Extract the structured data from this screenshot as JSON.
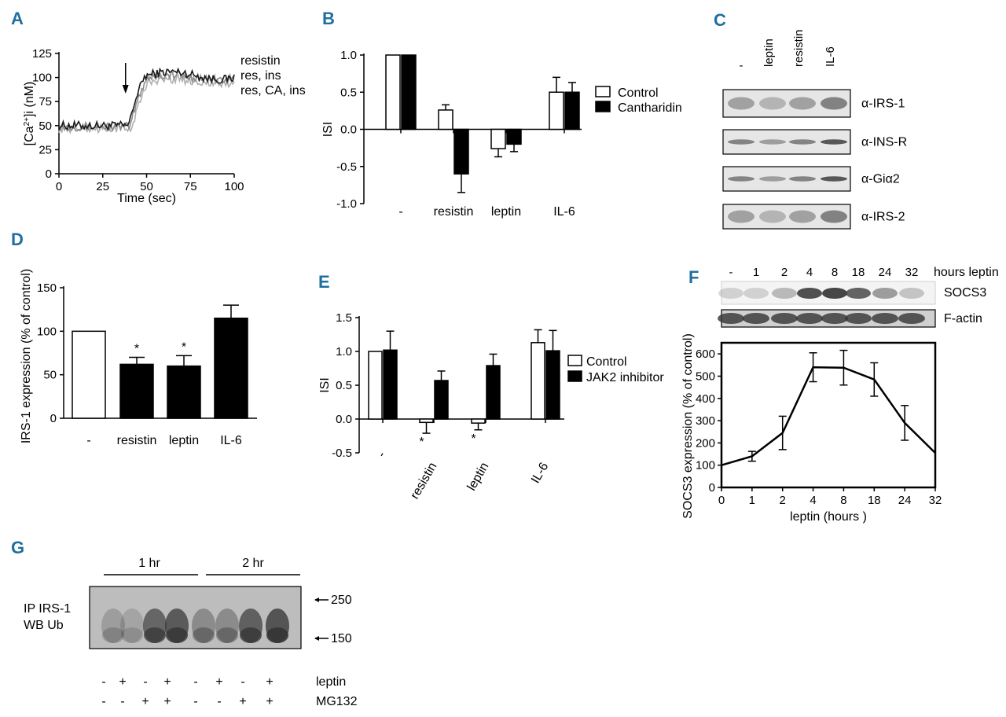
{
  "panels": {
    "A": "A",
    "B": "B",
    "C": "C",
    "D": "D",
    "E": "E",
    "F": "F",
    "G": "G"
  },
  "colors": {
    "panel_letter": "#1f6fa0",
    "bar_open": "#ffffff",
    "bar_filled": "#000000",
    "trace_dark": "#1a1a1a",
    "trace_gray_1": "#8a8a8a",
    "trace_gray_2": "#b0b0b0",
    "blot_band": "#333333"
  },
  "chart_data": [
    {
      "id": "A",
      "type": "line",
      "xlabel": "Time (sec)",
      "ylabel": "[Ca2+]i (nM)",
      "ylabel_prefix": "[Ca",
      "ylabel_sup": "2+",
      "ylabel_suffix": "]i (nM)",
      "xlim": [
        0,
        100
      ],
      "ylim": [
        0,
        125
      ],
      "xticks": [
        0,
        25,
        50,
        75,
        100
      ],
      "yticks": [
        0,
        25,
        50,
        75,
        100,
        125
      ],
      "arrow_at_x": 38,
      "series": [
        {
          "name": "resistin",
          "baseline": 50,
          "plateau": 102,
          "rise_x": 40
        },
        {
          "name": "res, ins",
          "baseline": 49,
          "plateau": 100,
          "rise_x": 41
        },
        {
          "name": "res, CA, ins",
          "baseline": 47,
          "plateau": 96,
          "rise_x": 42
        }
      ]
    },
    {
      "id": "B",
      "type": "bar",
      "ylabel": "ISI",
      "ylim": [
        -1.0,
        1.0
      ],
      "yticks": [
        -1.0,
        -0.5,
        0.0,
        0.5,
        1.0
      ],
      "ytick_labels": [
        "-1.0",
        "-0.5",
        "0.0",
        "0.5",
        "1.0"
      ],
      "categories": [
        "-",
        "resistin",
        "leptin",
        "IL-6"
      ],
      "series": [
        {
          "name": "Control",
          "values": [
            1.0,
            0.26,
            -0.26,
            0.5
          ],
          "errors": [
            0,
            0.07,
            0.11,
            0.2
          ]
        },
        {
          "name": "Cantharidin",
          "values": [
            1.0,
            -0.6,
            -0.2,
            0.5
          ],
          "errors": [
            0,
            0.25,
            0.1,
            0.13
          ]
        }
      ]
    },
    {
      "id": "D",
      "type": "bar",
      "ylabel": "IRS-1 expression (% of control)",
      "ylim": [
        0,
        150
      ],
      "yticks": [
        0,
        50,
        100,
        150
      ],
      "categories": [
        "-",
        "resistin",
        "leptin",
        "IL-6"
      ],
      "values": [
        100,
        62,
        60,
        115
      ],
      "errors": [
        0,
        8,
        12,
        15
      ],
      "fills": [
        "open",
        "filled",
        "filled",
        "filled"
      ],
      "significance": [
        "",
        "*",
        "*",
        ""
      ]
    },
    {
      "id": "E",
      "type": "bar",
      "ylabel": "ISI",
      "ylim": [
        -0.5,
        1.5
      ],
      "yticks": [
        -0.5,
        0.0,
        0.5,
        1.0,
        1.5
      ],
      "ytick_labels": [
        "-0.5",
        "0.0",
        "0.5",
        "1.0",
        "1.5"
      ],
      "categories": [
        "-",
        "resistin",
        "leptin",
        "IL-6"
      ],
      "series": [
        {
          "name": "Control",
          "values": [
            1.0,
            -0.05,
            -0.06,
            1.13
          ],
          "errors": [
            0,
            0.16,
            0.1,
            0.19
          ],
          "significance": [
            "",
            "*",
            "*",
            ""
          ]
        },
        {
          "name": "JAK2 inhibitor",
          "values": [
            1.02,
            0.57,
            0.79,
            1.01
          ],
          "errors": [
            0.28,
            0.14,
            0.17,
            0.3
          ]
        }
      ]
    },
    {
      "id": "F",
      "type": "line",
      "xlabel": "leptin (hours )",
      "ylabel": "SOCS3 expression (% of control)",
      "categories": [
        "0",
        "1",
        "2",
        "4",
        "8",
        "18",
        "24",
        "32"
      ],
      "values": [
        100,
        140,
        245,
        540,
        538,
        485,
        290,
        155
      ],
      "errors": [
        0,
        22,
        75,
        65,
        78,
        75,
        78,
        0
      ],
      "ylim": [
        0,
        650
      ],
      "yticks": [
        0,
        100,
        200,
        300,
        400,
        500,
        600
      ]
    }
  ],
  "blot_C": {
    "lanes": [
      "-",
      "leptin",
      "resistin",
      "IL-6"
    ],
    "rows": [
      "α-IRS-1",
      "α-INS-R",
      "α-Giα2",
      "α-IRS-2"
    ]
  },
  "blot_F": {
    "lanes": [
      "-",
      "1",
      "2",
      "4",
      "8",
      "18",
      "24",
      "32"
    ],
    "lane_unit": "hours leptin",
    "rows": [
      "SOCS3",
      "F-actin"
    ]
  },
  "blot_G": {
    "group_labels": [
      "1 hr",
      "2 hr"
    ],
    "side_label_line1": "IP IRS-1",
    "side_label_line2": "WB Ub",
    "markers": [
      "250",
      "150"
    ],
    "treatment_rows": [
      {
        "name": "leptin",
        "signs": [
          "-",
          "+",
          "-",
          "+",
          "-",
          "+",
          "-",
          "+"
        ]
      },
      {
        "name": "MG132",
        "signs": [
          "-",
          "-",
          "+",
          "+",
          "-",
          "-",
          "+",
          "+"
        ]
      }
    ]
  }
}
